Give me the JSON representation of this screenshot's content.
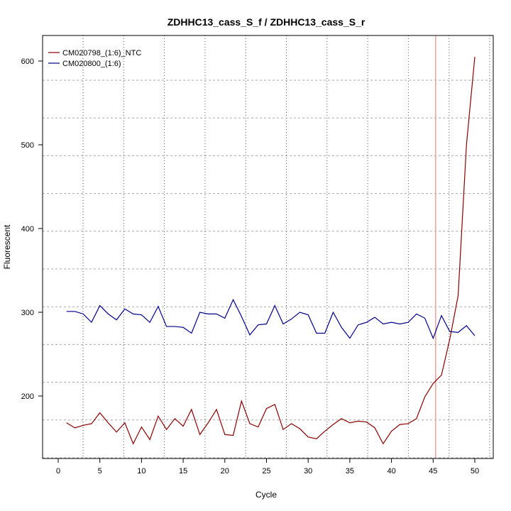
{
  "chart_data": {
    "type": "line",
    "title": "ZDHHC13_cass_S_f / ZDHHC13_cass_S_r",
    "xlabel": "Cycle",
    "ylabel": "Fluorescent",
    "xlim": [
      -2,
      52
    ],
    "ylim": [
      125,
      625
    ],
    "xticks": [
      0,
      5,
      10,
      15,
      20,
      25,
      30,
      35,
      40,
      45,
      50
    ],
    "yticks": [
      200,
      300,
      400,
      500,
      600
    ],
    "grid": true,
    "legend_position": "top-left",
    "threshold_cycle": 45.3,
    "colors": {
      "threshold": "#f0a0a0",
      "grid": "#aaaaaa"
    },
    "x": [
      1,
      2,
      3,
      4,
      5,
      6,
      7,
      8,
      9,
      10,
      11,
      12,
      13,
      14,
      15,
      16,
      17,
      18,
      19,
      20,
      21,
      22,
      23,
      24,
      25,
      26,
      27,
      28,
      29,
      30,
      31,
      32,
      33,
      34,
      35,
      36,
      37,
      38,
      39,
      40,
      41,
      42,
      43,
      44,
      45,
      46,
      47,
      48,
      49,
      50
    ],
    "series": [
      {
        "name": "CM020798_(1:6)_NTC",
        "color": "#8b0000",
        "values": [
          168,
          162,
          165,
          167,
          180,
          168,
          157,
          168,
          143,
          163,
          148,
          176,
          160,
          173,
          164,
          184,
          154,
          168,
          184,
          154,
          153,
          194,
          167,
          163,
          185,
          190,
          160,
          167,
          161,
          151,
          149,
          158,
          166,
          173,
          168,
          170,
          169,
          162,
          143,
          158,
          166,
          167,
          173,
          199,
          215,
          225,
          268,
          320,
          500,
          605
        ]
      },
      {
        "name": "CM020800_(1:6)",
        "color": "#00008b",
        "values": [
          301,
          301,
          298,
          288,
          308,
          298,
          291,
          304,
          298,
          297,
          288,
          307,
          283,
          283,
          282,
          275,
          300,
          298,
          298,
          293,
          315,
          295,
          273,
          285,
          286,
          308,
          286,
          292,
          300,
          297,
          275,
          275,
          300,
          282,
          269,
          285,
          288,
          294,
          286,
          288,
          286,
          288,
          298,
          293,
          269,
          296,
          277,
          276,
          284,
          272
        ]
      }
    ]
  }
}
